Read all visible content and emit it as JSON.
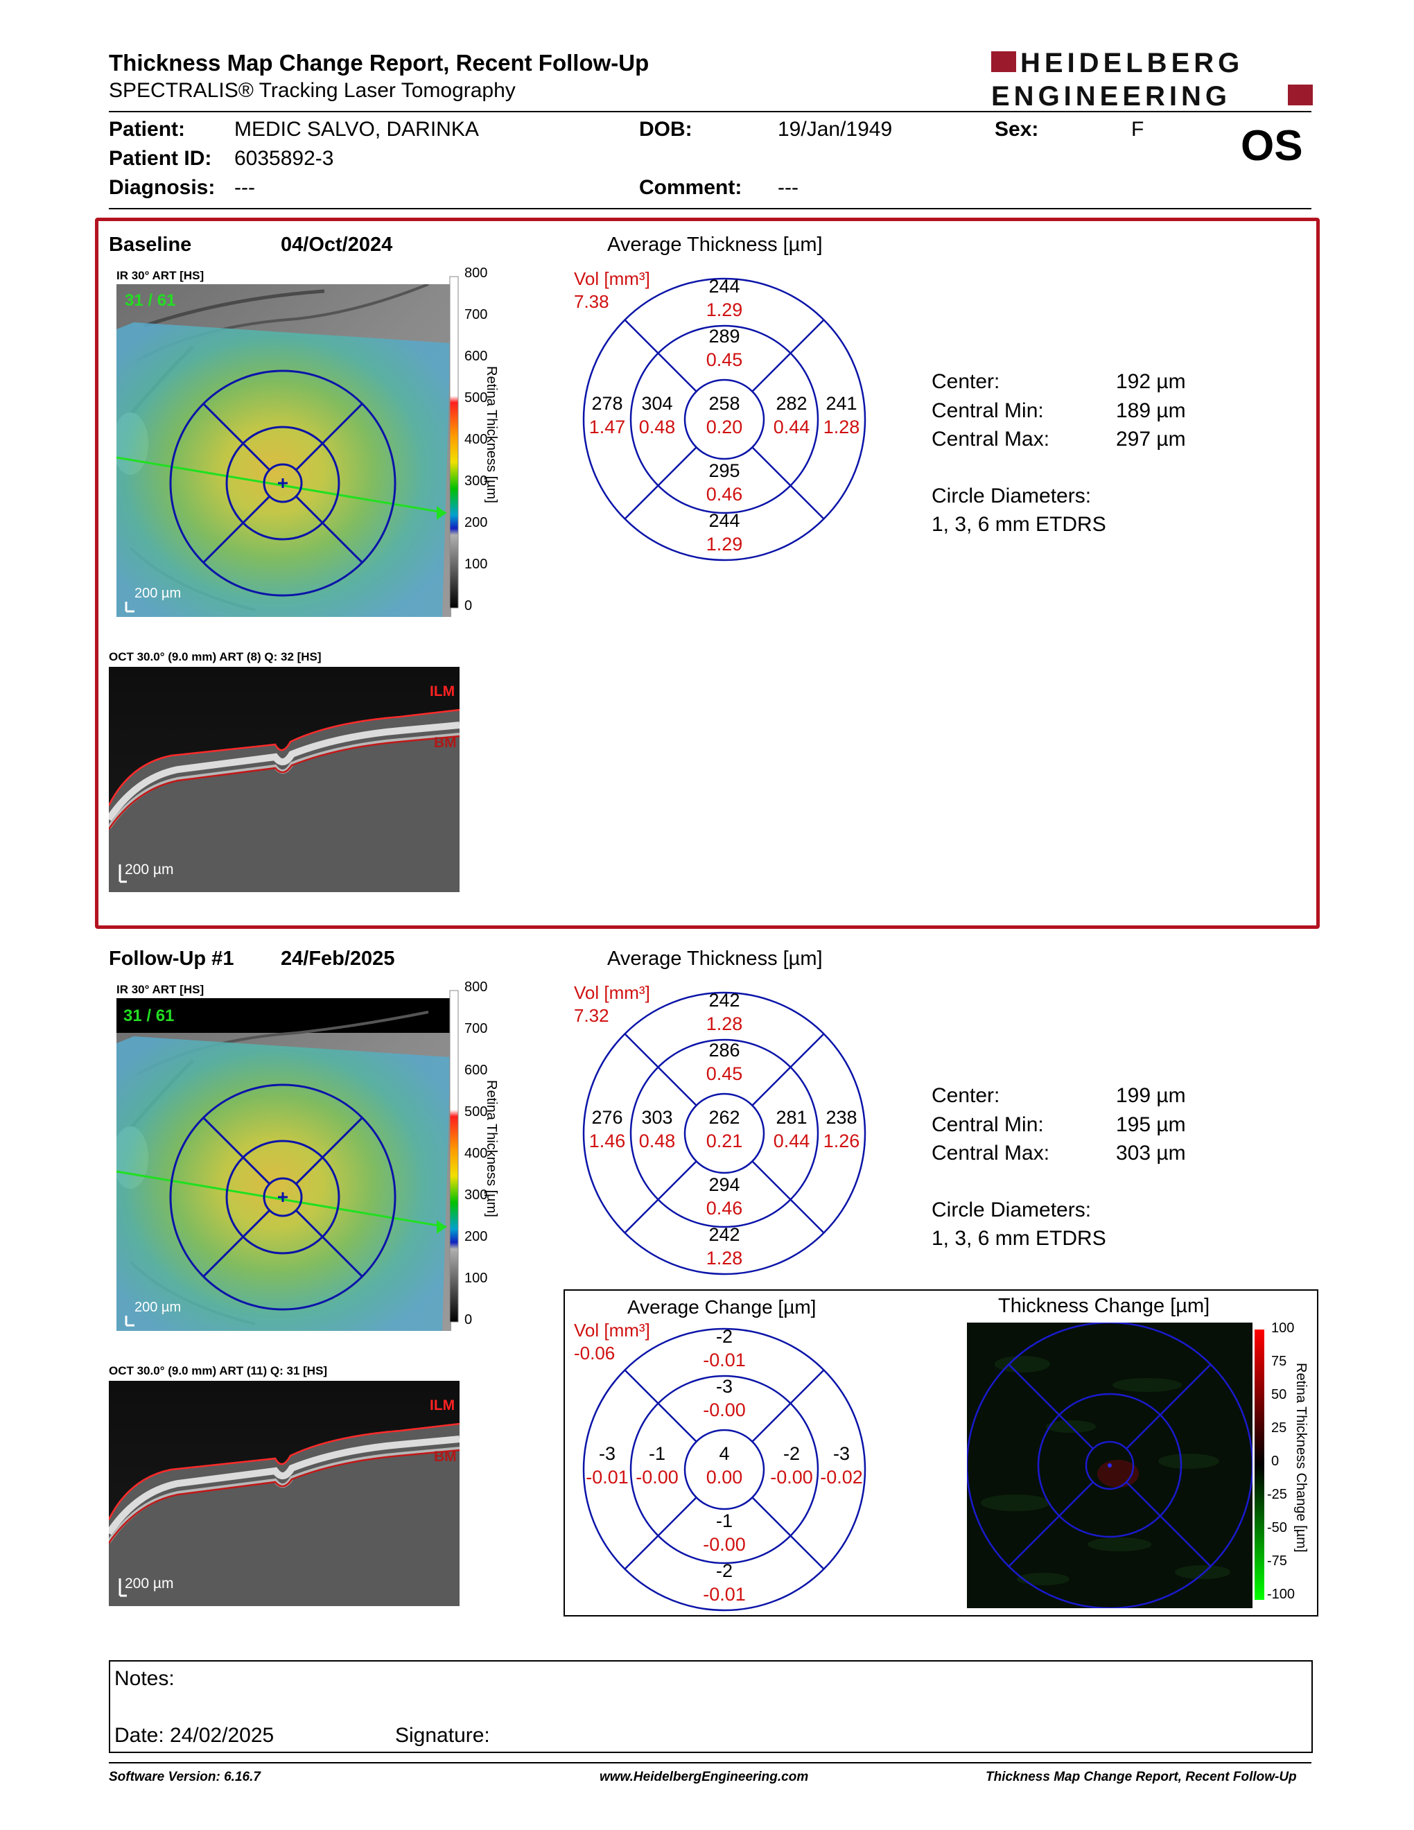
{
  "header": {
    "title": "Thickness Map Change Report, Recent Follow-Up",
    "subtitle": "SPECTRALIS® Tracking Laser Tomography",
    "logo_line1": "HEIDELBERG",
    "logo_line2": "ENGINEERING"
  },
  "patient": {
    "patient_label": "Patient:",
    "patient_value": "MEDIC SALVO, DARINKA",
    "dob_label": "DOB:",
    "dob_value": "19/Jan/1949",
    "sex_label": "Sex:",
    "sex_value": "F",
    "id_label": "Patient ID:",
    "id_value": "6035892-3",
    "diagnosis_label": "Diagnosis:",
    "diagnosis_value": "---",
    "comment_label": "Comment:",
    "comment_value": "---",
    "eye": "OS"
  },
  "baseline": {
    "label": "Baseline",
    "date": "04/Oct/2024",
    "ir_label": "IR 30° ART [HS]",
    "frame_count": "31 / 61",
    "scale_ir": "200 µm",
    "oct_label": "OCT 30.0° (9.0 mm) ART (8) Q: 32 [HS]",
    "scale_oct": "200 µm",
    "ilm": "ILM",
    "bm": "BM",
    "colorbar_ticks": [
      "800",
      "700",
      "600",
      "500",
      "400",
      "300",
      "200",
      "100",
      "0"
    ],
    "colorbar_title": "Retina Thickness [µm]",
    "avg_title": "Average Thickness [µm]",
    "vol_label": "Vol [mm³]",
    "vol_value": "7.38",
    "etdrs": {
      "sup_outer": [
        "244",
        "1.29"
      ],
      "sup_inner": [
        "289",
        "0.45"
      ],
      "temp_outer": [
        "278",
        "1.47"
      ],
      "temp_inner": [
        "304",
        "0.48"
      ],
      "center": [
        "258",
        "0.20"
      ],
      "nas_inner": [
        "282",
        "0.44"
      ],
      "nas_outer": [
        "241",
        "1.28"
      ],
      "inf_inner": [
        "295",
        "0.46"
      ],
      "inf_outer": [
        "244",
        "1.29"
      ]
    },
    "stats": {
      "center_label": "Center:",
      "center_value": "192 µm",
      "min_label": "Central Min:",
      "min_value": "189 µm",
      "max_label": "Central Max:",
      "max_value": "297 µm",
      "circle_label": "Circle Diameters:",
      "circle_value": "1, 3, 6 mm ETDRS"
    }
  },
  "followup": {
    "label": "Follow-Up #1",
    "date": "24/Feb/2025",
    "ir_label": "IR 30° ART [HS]",
    "frame_count": "31 / 61",
    "scale_ir": "200 µm",
    "oct_label": "OCT 30.0° (9.0 mm) ART (11) Q: 31 [HS]",
    "scale_oct": "200 µm",
    "ilm": "ILM",
    "bm": "BM",
    "colorbar_ticks": [
      "800",
      "700",
      "600",
      "500",
      "400",
      "300",
      "200",
      "100",
      "0"
    ],
    "colorbar_title": "Retina Thickness [µm]",
    "avg_title": "Average Thickness [µm]",
    "vol_label": "Vol [mm³]",
    "vol_value": "7.32",
    "etdrs": {
      "sup_outer": [
        "242",
        "1.28"
      ],
      "sup_inner": [
        "286",
        "0.45"
      ],
      "temp_outer": [
        "276",
        "1.46"
      ],
      "temp_inner": [
        "303",
        "0.48"
      ],
      "center": [
        "262",
        "0.21"
      ],
      "nas_inner": [
        "281",
        "0.44"
      ],
      "nas_outer": [
        "238",
        "1.26"
      ],
      "inf_inner": [
        "294",
        "0.46"
      ],
      "inf_outer": [
        "242",
        "1.28"
      ]
    },
    "stats": {
      "center_label": "Center:",
      "center_value": "199 µm",
      "min_label": "Central Min:",
      "min_value": "195 µm",
      "max_label": "Central Max:",
      "max_value": "303 µm",
      "circle_label": "Circle Diameters:",
      "circle_value": "1, 3, 6 mm ETDRS"
    }
  },
  "change": {
    "avg_title": "Average Change [µm]",
    "vol_label": "Vol [mm³]",
    "vol_value": "-0.06",
    "etdrs": {
      "sup_outer": [
        "-2",
        "-0.01"
      ],
      "sup_inner": [
        "-3",
        "-0.00"
      ],
      "temp_outer": [
        "-3",
        "-0.01"
      ],
      "temp_inner": [
        "-1",
        "-0.00"
      ],
      "center": [
        "4",
        "0.00"
      ],
      "nas_inner": [
        "-2",
        "-0.00"
      ],
      "nas_outer": [
        "-3",
        "-0.02"
      ],
      "inf_inner": [
        "-1",
        "-0.00"
      ],
      "inf_outer": [
        "-2",
        "-0.01"
      ]
    },
    "map_title": "Thickness Change [µm]",
    "colorbar_ticks": [
      "100",
      "75",
      "50",
      "25",
      "0",
      "-25",
      "-50",
      "-75",
      "-100"
    ],
    "colorbar_title": "Retina Thickness Change [µm]"
  },
  "notes": {
    "notes_label": "Notes:",
    "date_label": "Date: 24/02/2025",
    "signature_label": "Signature:"
  },
  "footer": {
    "software": "Software Version: 6.16.7",
    "website": "www.HeidelbergEngineering.com",
    "report": "Thickness Map Change Report, Recent Follow-Up"
  },
  "colors": {
    "brand_red": "#9b1b2c",
    "box_red": "#b3121f",
    "etdrs_blue": "#0b14a8",
    "vol_red": "#d01010"
  }
}
